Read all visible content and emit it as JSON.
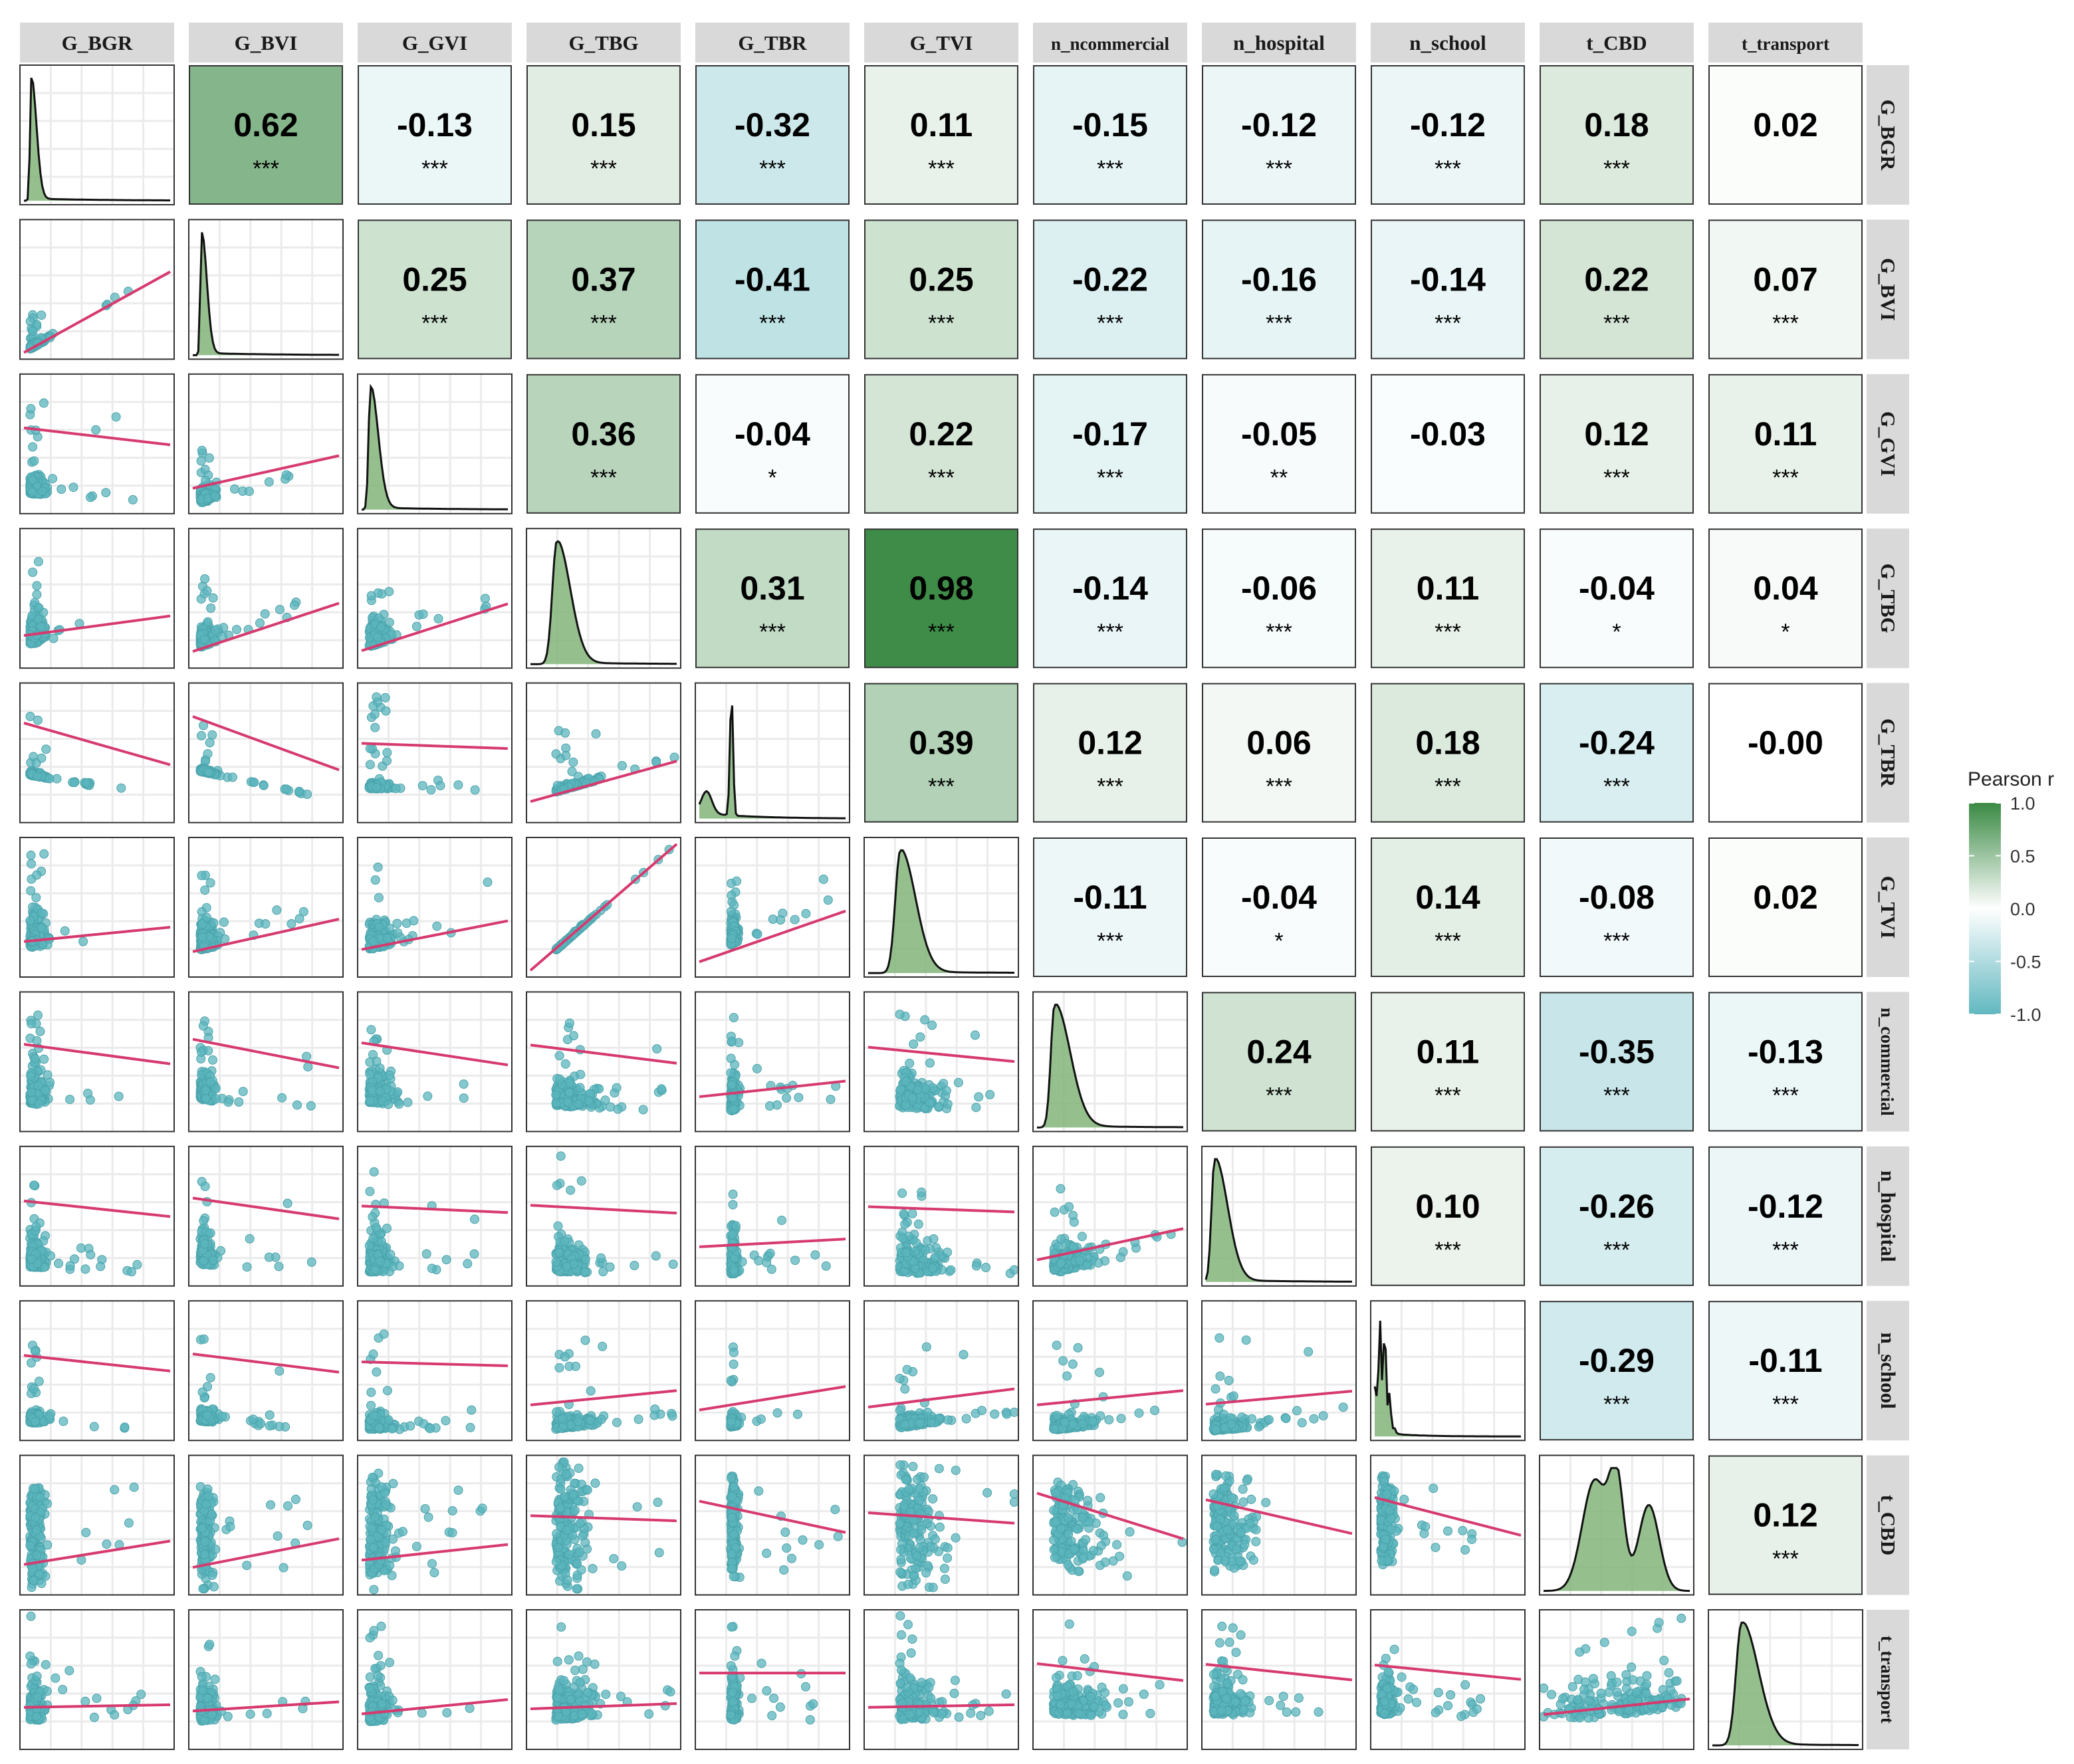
{
  "chart_data": {
    "type": "correlation-matrix",
    "variables": [
      "G_BGR",
      "G_BVI",
      "G_GVI",
      "G_TBG",
      "G_TBR",
      "G_TVI",
      "n_ncommercial",
      "n_hospital",
      "n_school",
      "t_CBD",
      "t_transport"
    ],
    "row_strip_labels": [
      "G_BGR",
      "G_BVI",
      "G_GVI",
      "G_TBG",
      "G_TBR",
      "G_TVI",
      "n_commercial",
      "n_hospital",
      "n_school",
      "t_CBD",
      "t_transport"
    ],
    "correlations": [
      {
        "row": 0,
        "col": 1,
        "r": 0.62,
        "label": "0.62",
        "stars": "***"
      },
      {
        "row": 0,
        "col": 2,
        "r": -0.13,
        "label": "-0.13",
        "stars": "***"
      },
      {
        "row": 0,
        "col": 3,
        "r": 0.15,
        "label": "0.15",
        "stars": "***"
      },
      {
        "row": 0,
        "col": 4,
        "r": -0.32,
        "label": "-0.32",
        "stars": "***"
      },
      {
        "row": 0,
        "col": 5,
        "r": 0.11,
        "label": "0.11",
        "stars": "***"
      },
      {
        "row": 0,
        "col": 6,
        "r": -0.15,
        "label": "-0.15",
        "stars": "***"
      },
      {
        "row": 0,
        "col": 7,
        "r": -0.12,
        "label": "-0.12",
        "stars": "***"
      },
      {
        "row": 0,
        "col": 8,
        "r": -0.12,
        "label": "-0.12",
        "stars": "***"
      },
      {
        "row": 0,
        "col": 9,
        "r": 0.18,
        "label": "0.18",
        "stars": "***"
      },
      {
        "row": 0,
        "col": 10,
        "r": 0.02,
        "label": "0.02",
        "stars": ""
      },
      {
        "row": 1,
        "col": 2,
        "r": 0.25,
        "label": "0.25",
        "stars": "***"
      },
      {
        "row": 1,
        "col": 3,
        "r": 0.37,
        "label": "0.37",
        "stars": "***"
      },
      {
        "row": 1,
        "col": 4,
        "r": -0.41,
        "label": "-0.41",
        "stars": "***"
      },
      {
        "row": 1,
        "col": 5,
        "r": 0.25,
        "label": "0.25",
        "stars": "***"
      },
      {
        "row": 1,
        "col": 6,
        "r": -0.22,
        "label": "-0.22",
        "stars": "***"
      },
      {
        "row": 1,
        "col": 7,
        "r": -0.16,
        "label": "-0.16",
        "stars": "***"
      },
      {
        "row": 1,
        "col": 8,
        "r": -0.14,
        "label": "-0.14",
        "stars": "***"
      },
      {
        "row": 1,
        "col": 9,
        "r": 0.22,
        "label": "0.22",
        "stars": "***"
      },
      {
        "row": 1,
        "col": 10,
        "r": 0.07,
        "label": "0.07",
        "stars": "***"
      },
      {
        "row": 2,
        "col": 3,
        "r": 0.36,
        "label": "0.36",
        "stars": "***"
      },
      {
        "row": 2,
        "col": 4,
        "r": -0.04,
        "label": "-0.04",
        "stars": "*"
      },
      {
        "row": 2,
        "col": 5,
        "r": 0.22,
        "label": "0.22",
        "stars": "***"
      },
      {
        "row": 2,
        "col": 6,
        "r": -0.17,
        "label": "-0.17",
        "stars": "***"
      },
      {
        "row": 2,
        "col": 7,
        "r": -0.05,
        "label": "-0.05",
        "stars": "**"
      },
      {
        "row": 2,
        "col": 8,
        "r": -0.03,
        "label": "-0.03",
        "stars": ""
      },
      {
        "row": 2,
        "col": 9,
        "r": 0.12,
        "label": "0.12",
        "stars": "***"
      },
      {
        "row": 2,
        "col": 10,
        "r": 0.11,
        "label": "0.11",
        "stars": "***"
      },
      {
        "row": 3,
        "col": 4,
        "r": 0.31,
        "label": "0.31",
        "stars": "***"
      },
      {
        "row": 3,
        "col": 5,
        "r": 0.98,
        "label": "0.98",
        "stars": "***"
      },
      {
        "row": 3,
        "col": 6,
        "r": -0.14,
        "label": "-0.14",
        "stars": "***"
      },
      {
        "row": 3,
        "col": 7,
        "r": -0.06,
        "label": "-0.06",
        "stars": "***"
      },
      {
        "row": 3,
        "col": 8,
        "r": 0.11,
        "label": "0.11",
        "stars": "***"
      },
      {
        "row": 3,
        "col": 9,
        "r": -0.04,
        "label": "-0.04",
        "stars": "*"
      },
      {
        "row": 3,
        "col": 10,
        "r": 0.04,
        "label": "0.04",
        "stars": "*"
      },
      {
        "row": 4,
        "col": 5,
        "r": 0.39,
        "label": "0.39",
        "stars": "***"
      },
      {
        "row": 4,
        "col": 6,
        "r": 0.12,
        "label": "0.12",
        "stars": "***"
      },
      {
        "row": 4,
        "col": 7,
        "r": 0.06,
        "label": "0.06",
        "stars": "***"
      },
      {
        "row": 4,
        "col": 8,
        "r": 0.18,
        "label": "0.18",
        "stars": "***"
      },
      {
        "row": 4,
        "col": 9,
        "r": -0.24,
        "label": "-0.24",
        "stars": "***"
      },
      {
        "row": 4,
        "col": 10,
        "r": -0.0,
        "label": "-0.00",
        "stars": ""
      },
      {
        "row": 5,
        "col": 6,
        "r": -0.11,
        "label": "-0.11",
        "stars": "***"
      },
      {
        "row": 5,
        "col": 7,
        "r": -0.04,
        "label": "-0.04",
        "stars": "*"
      },
      {
        "row": 5,
        "col": 8,
        "r": 0.14,
        "label": "0.14",
        "stars": "***"
      },
      {
        "row": 5,
        "col": 9,
        "r": -0.08,
        "label": "-0.08",
        "stars": "***"
      },
      {
        "row": 5,
        "col": 10,
        "r": 0.02,
        "label": "0.02",
        "stars": ""
      },
      {
        "row": 6,
        "col": 7,
        "r": 0.24,
        "label": "0.24",
        "stars": "***"
      },
      {
        "row": 6,
        "col": 8,
        "r": 0.11,
        "label": "0.11",
        "stars": "***"
      },
      {
        "row": 6,
        "col": 9,
        "r": -0.35,
        "label": "-0.35",
        "stars": "***"
      },
      {
        "row": 6,
        "col": 10,
        "r": -0.13,
        "label": "-0.13",
        "stars": "***"
      },
      {
        "row": 7,
        "col": 8,
        "r": 0.1,
        "label": "0.10",
        "stars": "***"
      },
      {
        "row": 7,
        "col": 9,
        "r": -0.26,
        "label": "-0.26",
        "stars": "***"
      },
      {
        "row": 7,
        "col": 10,
        "r": -0.12,
        "label": "-0.12",
        "stars": "***"
      },
      {
        "row": 8,
        "col": 9,
        "r": -0.29,
        "label": "-0.29",
        "stars": "***"
      },
      {
        "row": 8,
        "col": 10,
        "r": -0.11,
        "label": "-0.11",
        "stars": "***"
      },
      {
        "row": 9,
        "col": 10,
        "r": 0.12,
        "label": "0.12",
        "stars": "***"
      }
    ],
    "diagonal_type": "density",
    "lower_type": "scatter-with-linear-fit",
    "legend": {
      "title": "Pearson r",
      "ticks": [
        1.0,
        0.5,
        0.0,
        -0.5,
        -1.0
      ],
      "tick_labels": [
        "1.0",
        "0.5",
        "0.0",
        "-0.5",
        "-1.0"
      ],
      "placement": "right"
    },
    "colors": {
      "positive": "#3A8A44",
      "neutral": "#FFFFFF",
      "negative": "#62B8C0",
      "points": "#5BB5BD",
      "fit_line": "#D63A6E",
      "density_fill": "#82B57A",
      "strip_bg": "#D9D9D9",
      "grid": "#EBEBEB",
      "panel_border": "#333333"
    },
    "grid": true
  }
}
